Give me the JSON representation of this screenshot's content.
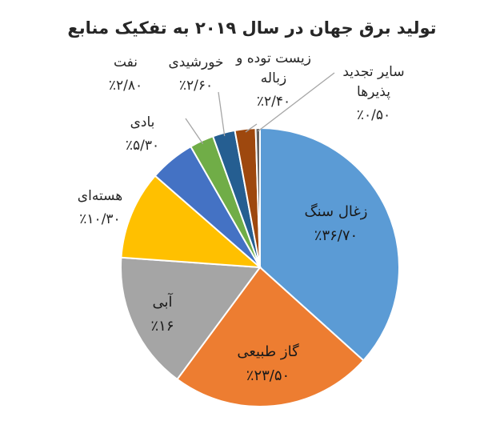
{
  "chart_data": {
    "type": "pie",
    "title": "تولید برق جهان در سال ۲۰۱۹ به تفکیک منابع",
    "slices": [
      {
        "name": "زغال سنگ",
        "value": 36.7,
        "label": "٪۳۶/۷۰",
        "color": "#5b9bd5"
      },
      {
        "name": "گاز طبیعی",
        "value": 23.5,
        "label": "٪۲۳/۵۰",
        "color": "#ed7d31"
      },
      {
        "name": "آبی",
        "value": 16.0,
        "label": "٪۱۶",
        "color": "#a5a5a5"
      },
      {
        "name": "هسته‌ای",
        "value": 10.3,
        "label": "٪۱۰/۳۰",
        "color": "#ffc000"
      },
      {
        "name": "بادی",
        "value": 5.3,
        "label": "٪۵/۳۰",
        "color": "#4472c4"
      },
      {
        "name": "نفت",
        "value": 2.8,
        "label": "٪۲/۸۰",
        "color": "#70ad47"
      },
      {
        "name": "خورشیدی",
        "value": 2.6,
        "label": "٪۲/۶۰",
        "color": "#255e91"
      },
      {
        "name": "زیست توده و زباله",
        "name_lines": [
          "زیست توده و",
          "زباله"
        ],
        "value": 2.4,
        "label": "٪۲/۴۰",
        "color": "#9e480e"
      },
      {
        "name": "سایر تجدید پذیرها",
        "name_lines": [
          "سایر تجدید",
          "پذیرها"
        ],
        "value": 0.5,
        "label": "٪۰/۵۰",
        "color": "#636363"
      }
    ],
    "start_angle_deg": 0,
    "direction": "clockwise",
    "legend": "none",
    "labels": "category-and-value"
  }
}
